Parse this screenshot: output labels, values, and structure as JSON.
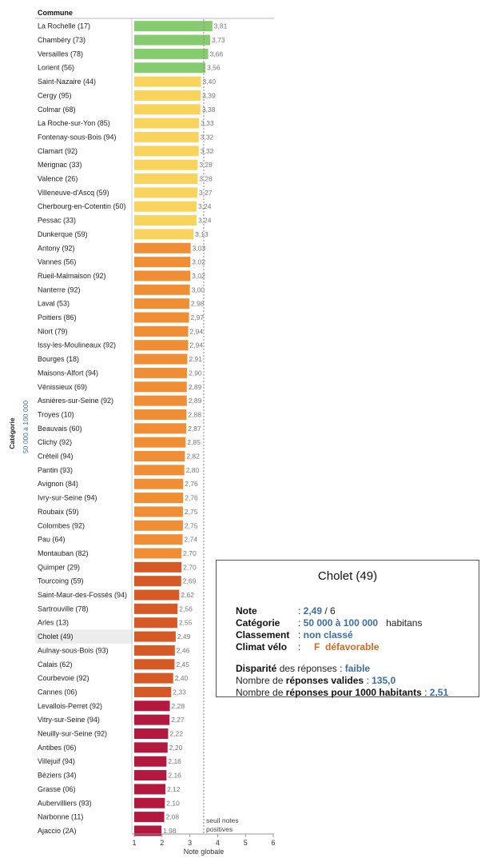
{
  "chart_data": {
    "type": "bar",
    "orientation": "horizontal",
    "header": "Commune",
    "xlabel": "Note globale",
    "xlim": [
      1,
      6
    ],
    "xticks": [
      "1",
      "2",
      "3",
      "4",
      "5",
      "6"
    ],
    "category_title": "Catégorie",
    "category_value": "50 000 à 100 000",
    "reference_line": {
      "value": 3.5,
      "label_line1": "seuil notes",
      "label_line2": "positives"
    },
    "highlighted": "Cholet (49)",
    "colors": {
      "green": "#86cb6e",
      "yellow": "#f9d45c",
      "orange": "#ef8e35",
      "dark_orange": "#d55a26",
      "crimson": "#b3183f"
    },
    "bars": [
      {
        "name": "La Rochelle (17)",
        "value": 3.81,
        "label": "3,81",
        "color": "green"
      },
      {
        "name": "Chambéry (73)",
        "value": 3.73,
        "label": "3,73",
        "color": "green"
      },
      {
        "name": "Versailles (78)",
        "value": 3.66,
        "label": "3,66",
        "color": "green"
      },
      {
        "name": "Lorient (56)",
        "value": 3.56,
        "label": "3,56",
        "color": "green"
      },
      {
        "name": "Saint-Nazaire (44)",
        "value": 3.4,
        "label": "3,40",
        "color": "yellow"
      },
      {
        "name": "Cergy (95)",
        "value": 3.39,
        "label": "3,39",
        "color": "yellow"
      },
      {
        "name": "Colmar (68)",
        "value": 3.38,
        "label": "3,38",
        "color": "yellow"
      },
      {
        "name": "La Roche-sur-Yon (85)",
        "value": 3.33,
        "label": "3,33",
        "color": "yellow"
      },
      {
        "name": "Fontenay-sous-Bois (94)",
        "value": 3.32,
        "label": "3,32",
        "color": "yellow"
      },
      {
        "name": "Clamart (92)",
        "value": 3.32,
        "label": "3,32",
        "color": "yellow"
      },
      {
        "name": "Mérignac (33)",
        "value": 3.28,
        "label": "3,28",
        "color": "yellow"
      },
      {
        "name": "Valence (26)",
        "value": 3.28,
        "label": "3,28",
        "color": "yellow"
      },
      {
        "name": "Villeneuve-d'Ascq (59)",
        "value": 3.27,
        "label": "3,27",
        "color": "yellow"
      },
      {
        "name": "Cherbourg-en-Cotentin (50)",
        "value": 3.24,
        "label": "3,24",
        "color": "yellow"
      },
      {
        "name": "Pessac (33)",
        "value": 3.24,
        "label": "3,24",
        "color": "yellow"
      },
      {
        "name": "Dunkerque (59)",
        "value": 3.13,
        "label": "3,13",
        "color": "yellow"
      },
      {
        "name": "Antony (92)",
        "value": 3.03,
        "label": "3,03",
        "color": "orange"
      },
      {
        "name": "Vannes (56)",
        "value": 3.02,
        "label": "3,02",
        "color": "orange"
      },
      {
        "name": "Rueil-Malmaison (92)",
        "value": 3.02,
        "label": "3,02",
        "color": "orange"
      },
      {
        "name": "Nanterre (92)",
        "value": 3.0,
        "label": "3,00",
        "color": "orange"
      },
      {
        "name": "Laval (53)",
        "value": 2.98,
        "label": "2,98",
        "color": "orange"
      },
      {
        "name": "Poitiers (86)",
        "value": 2.97,
        "label": "2,97",
        "color": "orange"
      },
      {
        "name": "Niort (79)",
        "value": 2.94,
        "label": "2,94",
        "color": "orange"
      },
      {
        "name": "Issy-les-Moulineaux (92)",
        "value": 2.94,
        "label": "2,94",
        "color": "orange"
      },
      {
        "name": "Bourges (18)",
        "value": 2.91,
        "label": "2,91",
        "color": "orange"
      },
      {
        "name": "Maisons-Alfort (94)",
        "value": 2.9,
        "label": "2,90",
        "color": "orange"
      },
      {
        "name": "Vénissieux (69)",
        "value": 2.89,
        "label": "2,89",
        "color": "orange"
      },
      {
        "name": "Asnières-sur-Seine (92)",
        "value": 2.89,
        "label": "2,89",
        "color": "orange"
      },
      {
        "name": "Troyes (10)",
        "value": 2.88,
        "label": "2,88",
        "color": "orange"
      },
      {
        "name": "Beauvais (60)",
        "value": 2.87,
        "label": "2,87",
        "color": "orange"
      },
      {
        "name": "Clichy (92)",
        "value": 2.85,
        "label": "2,85",
        "color": "orange"
      },
      {
        "name": "Créteil (94)",
        "value": 2.82,
        "label": "2,82",
        "color": "orange"
      },
      {
        "name": "Pantin (93)",
        "value": 2.8,
        "label": "2,80",
        "color": "orange"
      },
      {
        "name": "Avignon (84)",
        "value": 2.76,
        "label": "2,76",
        "color": "orange"
      },
      {
        "name": "Ivry-sur-Seine (94)",
        "value": 2.76,
        "label": "2,76",
        "color": "orange"
      },
      {
        "name": "Roubaix (59)",
        "value": 2.75,
        "label": "2,75",
        "color": "orange"
      },
      {
        "name": "Colombes (92)",
        "value": 2.75,
        "label": "2,75",
        "color": "orange"
      },
      {
        "name": "Pau (64)",
        "value": 2.74,
        "label": "2,74",
        "color": "orange"
      },
      {
        "name": "Montauban (82)",
        "value": 2.7,
        "label": "2,70",
        "color": "orange"
      },
      {
        "name": "Quimper (29)",
        "value": 2.7,
        "label": "2,70",
        "color": "dark_orange"
      },
      {
        "name": "Tourcoing (59)",
        "value": 2.69,
        "label": "2,69",
        "color": "dark_orange"
      },
      {
        "name": "Saint-Maur-des-Fossés (94)",
        "value": 2.62,
        "label": "2,62",
        "color": "dark_orange"
      },
      {
        "name": "Sartrouville (78)",
        "value": 2.56,
        "label": "2,56",
        "color": "dark_orange"
      },
      {
        "name": "Arles (13)",
        "value": 2.55,
        "label": "2,55",
        "color": "dark_orange"
      },
      {
        "name": "Cholet (49)",
        "value": 2.49,
        "label": "2,49",
        "color": "dark_orange"
      },
      {
        "name": "Aulnay-sous-Bois (93)",
        "value": 2.46,
        "label": "2,46",
        "color": "dark_orange"
      },
      {
        "name": "Calais (62)",
        "value": 2.45,
        "label": "2,45",
        "color": "dark_orange"
      },
      {
        "name": "Courbevoie (92)",
        "value": 2.4,
        "label": "2,40",
        "color": "dark_orange"
      },
      {
        "name": "Cannes (06)",
        "value": 2.33,
        "label": "2,33",
        "color": "dark_orange"
      },
      {
        "name": "Levallois-Perret (92)",
        "value": 2.28,
        "label": "2,28",
        "color": "crimson"
      },
      {
        "name": "Vitry-sur-Seine (94)",
        "value": 2.27,
        "label": "2,27",
        "color": "crimson"
      },
      {
        "name": "Neuilly-sur-Seine (92)",
        "value": 2.22,
        "label": "2,22",
        "color": "crimson"
      },
      {
        "name": "Antibes (06)",
        "value": 2.2,
        "label": "2,20",
        "color": "crimson"
      },
      {
        "name": "Villejuif (94)",
        "value": 2.16,
        "label": "2,16",
        "color": "crimson"
      },
      {
        "name": "Béziers (34)",
        "value": 2.16,
        "label": "2,16",
        "color": "crimson"
      },
      {
        "name": "Grasse (06)",
        "value": 2.12,
        "label": "2,12",
        "color": "crimson"
      },
      {
        "name": "Aubervilliers (93)",
        "value": 2.1,
        "label": "2,10",
        "color": "crimson"
      },
      {
        "name": "Narbonne (11)",
        "value": 2.08,
        "label": "2,08",
        "color": "crimson"
      },
      {
        "name": "Ajaccio (2A)",
        "value": 1.98,
        "label": "1,98",
        "color": "crimson"
      }
    ]
  },
  "tooltip": {
    "title": "Cholet (49)",
    "note_label": "Note",
    "note_value": "2,49",
    "note_max": "/ 6",
    "categorie_label": "Catégorie",
    "categorie_value": "50 000 à 100 000",
    "categorie_unit": "habitans",
    "classement_label": "Classement",
    "classement_value": "non classé",
    "climat_label": "Climat vélo",
    "climat_grade": "F",
    "climat_value": "défavorable",
    "disparite_word": "Disparité",
    "disparite_rest": "des réponses :",
    "disparite_value": "faible",
    "reponses_prefix": "Nombre de",
    "reponses_bold": "réponses valides",
    "reponses_value": "135,0",
    "reponses1000_prefix": "Nombre de",
    "reponses1000_bold": "réponses pour 1000 habitants",
    "reponses1000_value": "2,51"
  }
}
